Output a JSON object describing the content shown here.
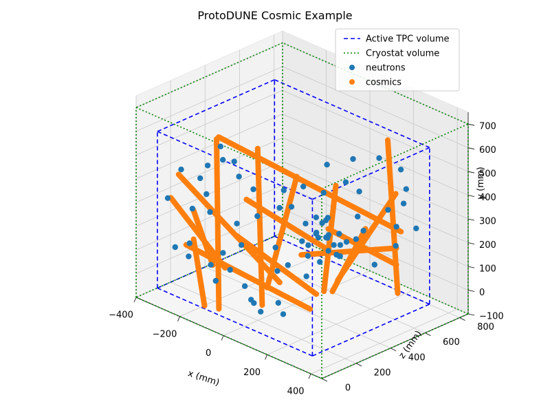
{
  "chart_data": {
    "type": "scatter3d",
    "title": "ProtoDUNE Cosmic Example",
    "xlabel": "x (mm)",
    "ylabel": "y (mm)",
    "zlabel": "z (mm)",
    "xlim": [
      -400,
      450
    ],
    "ylim": [
      -100,
      750
    ],
    "zlim": [
      0,
      850
    ],
    "x_ticks": [
      "−400",
      "−200",
      "0",
      "200",
      "400"
    ],
    "y_ticks": [
      "−100",
      "0",
      "100",
      "200",
      "300",
      "400",
      "500",
      "600",
      "700"
    ],
    "z_ticks": [
      "0",
      "200",
      "400",
      "600",
      "800"
    ],
    "grid": true,
    "legend_position": "top-right",
    "series": [
      {
        "name": "Active TPC volume",
        "kind": "box",
        "style": "dashed",
        "color": "#0000ff",
        "x": [
          -350,
          360
        ],
        "y": [
          -60,
          600
        ],
        "z": [
          60,
          740
        ]
      },
      {
        "name": "Cryostat volume",
        "kind": "box",
        "style": "dotted",
        "color": "#008000",
        "x": [
          -400,
          450
        ],
        "y": [
          -100,
          700
        ],
        "z": [
          0,
          850
        ]
      },
      {
        "name": "neutrons",
        "kind": "points",
        "color": "#1f77b4",
        "points": [
          [
            150,
            250,
            420
          ],
          [
            170,
            260,
            380
          ],
          [
            190,
            230,
            400
          ],
          [
            200,
            280,
            350
          ],
          [
            130,
            300,
            430
          ],
          [
            210,
            200,
            390
          ],
          [
            160,
            320,
            370
          ],
          [
            220,
            240,
            330
          ],
          [
            180,
            210,
            450
          ],
          [
            140,
            270,
            360
          ],
          [
            240,
            260,
            410
          ],
          [
            120,
            220,
            340
          ],
          [
            230,
            300,
            380
          ],
          [
            200,
            180,
            420
          ],
          [
            170,
            340,
            390
          ],
          [
            250,
            220,
            360
          ],
          [
            110,
            250,
            400
          ],
          [
            190,
            290,
            310
          ],
          [
            260,
            270,
            440
          ],
          [
            150,
            200,
            300
          ],
          [
            100,
            300,
            350
          ],
          [
            -250,
            500,
            300
          ],
          [
            -200,
            480,
            250
          ],
          [
            -150,
            420,
            280
          ],
          [
            -280,
            380,
            220
          ],
          [
            -220,
            350,
            180
          ],
          [
            -100,
            380,
            300
          ],
          [
            -50,
            300,
            260
          ],
          [
            -300,
            250,
            200
          ],
          [
            -180,
            300,
            150
          ],
          [
            -120,
            250,
            230
          ],
          [
            -60,
            200,
            180
          ],
          [
            -250,
            150,
            120
          ],
          [
            -160,
            120,
            200
          ],
          [
            -80,
            100,
            140
          ],
          [
            0,
            400,
            350
          ],
          [
            20,
            350,
            300
          ],
          [
            50,
            420,
            400
          ],
          [
            -20,
            300,
            420
          ],
          [
            80,
            380,
            480
          ],
          [
            30,
            250,
            500
          ],
          [
            60,
            200,
            380
          ],
          [
            -30,
            150,
            340
          ],
          [
            10,
            80,
            300
          ],
          [
            90,
            150,
            260
          ],
          [
            40,
            460,
            550
          ],
          [
            120,
            500,
            600
          ],
          [
            200,
            520,
            650
          ],
          [
            260,
            480,
            700
          ],
          [
            300,
            420,
            680
          ],
          [
            320,
            380,
            640
          ],
          [
            280,
            350,
            600
          ],
          [
            350,
            320,
            560
          ],
          [
            -300,
            120,
            100
          ],
          [
            -270,
            80,
            140
          ],
          [
            -200,
            60,
            180
          ],
          [
            -130,
            40,
            120
          ],
          [
            -60,
            20,
            200
          ],
          [
            0,
            0,
            160
          ],
          [
            60,
            -20,
            140
          ],
          [
            100,
            -40,
            220
          ],
          [
            -50,
            -60,
            240
          ],
          [
            30,
            -40,
            280
          ],
          [
            250,
            120,
            560
          ],
          [
            300,
            200,
            620
          ],
          [
            330,
            260,
            700
          ],
          [
            -350,
            300,
            120
          ],
          [
            -320,
            420,
            160
          ],
          [
            -230,
            460,
            200
          ],
          [
            -140,
            500,
            240
          ],
          [
            150,
            440,
            520
          ],
          [
            180,
            400,
            560
          ],
          [
            220,
            330,
            500
          ],
          [
            270,
            300,
            470
          ],
          [
            110,
            120,
            420
          ],
          [
            80,
            60,
            380
          ]
        ]
      },
      {
        "name": "cosmics",
        "kind": "tracks",
        "color": "#ff7f0e",
        "tracks": [
          [
            [
              -150,
              620,
              150
            ],
            [
              -100,
              -60,
              100
            ]
          ],
          [
            [
              -180,
              600,
              200
            ],
            [
              300,
              250,
              650
            ]
          ],
          [
            [
              -300,
              420,
              120
            ],
            [
              100,
              100,
              200
            ]
          ],
          [
            [
              -80,
              560,
              300
            ],
            [
              -20,
              -60,
              250
            ]
          ],
          [
            [
              200,
              580,
              700
            ],
            [
              230,
              -60,
              720
            ]
          ],
          [
            [
              -320,
              320,
              100
            ],
            [
              -40,
              150,
              60
            ]
          ],
          [
            [
              -200,
              200,
              80
            ],
            [
              -150,
              -60,
              80
            ]
          ],
          [
            [
              20,
              450,
              400
            ],
            [
              -100,
              -60,
              380
            ]
          ],
          [
            [
              120,
              420,
              500
            ],
            [
              50,
              -60,
              520
            ]
          ],
          [
            [
              -250,
              150,
              100
            ],
            [
              160,
              -20,
              300
            ]
          ],
          [
            [
              180,
              300,
              380
            ],
            [
              350,
              160,
              560
            ]
          ],
          [
            [
              240,
              280,
              520
            ],
            [
              120,
              -20,
              480
            ]
          ],
          [
            [
              300,
              420,
              620
            ],
            [
              160,
              50,
              460
            ]
          ],
          [
            [
              -100,
              350,
              260
            ],
            [
              140,
              180,
              430
            ]
          ],
          [
            [
              -280,
              260,
              180
            ],
            [
              -120,
              120,
              90
            ]
          ],
          [
            [
              -60,
              250,
              150
            ],
            [
              220,
              80,
              260
            ]
          ],
          [
            [
              80,
              160,
              350
            ],
            [
              350,
              230,
              560
            ]
          ]
        ]
      }
    ]
  }
}
